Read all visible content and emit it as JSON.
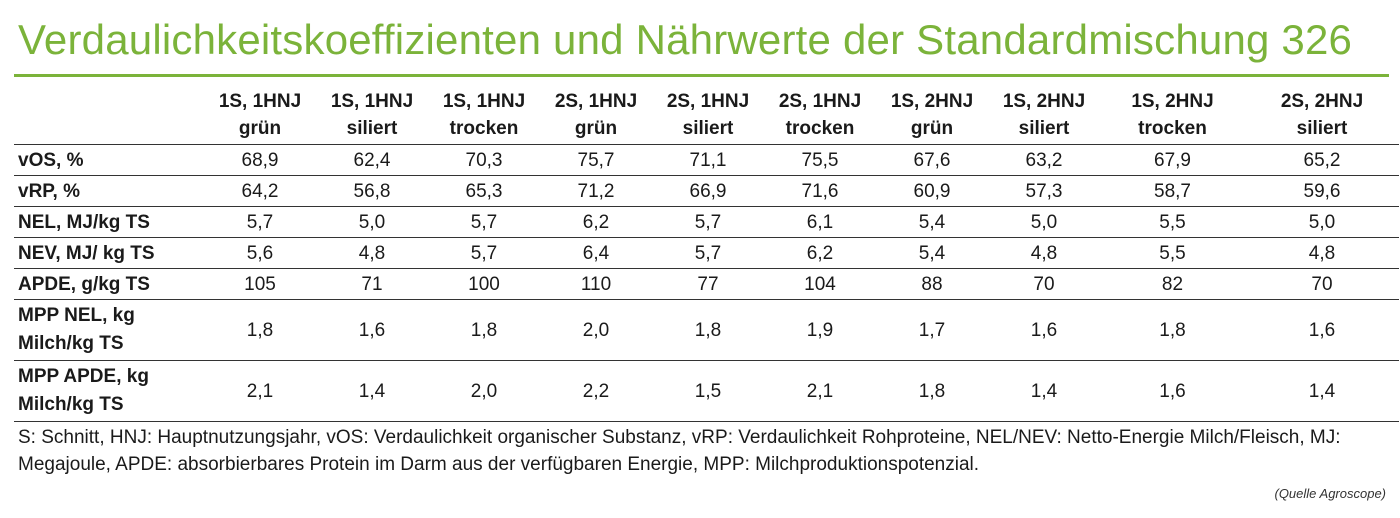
{
  "title": "Verdaulichkeitskoeffizienten und Nährwerte der Standardmischung 326",
  "colors": {
    "accent": "#7bb33a",
    "text": "#1a1a1a",
    "rule": "#333333"
  },
  "table": {
    "columns": [
      {
        "line1": "1S, 1HNJ",
        "line2": "grün"
      },
      {
        "line1": "1S, 1HNJ",
        "line2": "siliert"
      },
      {
        "line1": "1S, 1HNJ",
        "line2": "trocken"
      },
      {
        "line1": "2S, 1HNJ",
        "line2": "grün"
      },
      {
        "line1": "2S, 1HNJ",
        "line2": "siliert"
      },
      {
        "line1": "2S, 1HNJ",
        "line2": "trocken"
      },
      {
        "line1": "1S, 2HNJ",
        "line2": "grün"
      },
      {
        "line1": "1S, 2HNJ",
        "line2": "siliert"
      },
      {
        "line1": "1S, 2HNJ",
        "line2": "trocken"
      },
      {
        "line1": "2S, 2HNJ",
        "line2": "siliert"
      }
    ],
    "rows": [
      {
        "label": [
          "vOS, %"
        ],
        "values": [
          "68,9",
          "62,4",
          "70,3",
          "75,7",
          "71,1",
          "75,5",
          "67,6",
          "63,2",
          "67,9",
          "65,2"
        ]
      },
      {
        "label": [
          "vRP, %"
        ],
        "values": [
          "64,2",
          "56,8",
          "65,3",
          "71,2",
          "66,9",
          "71,6",
          "60,9",
          "57,3",
          "58,7",
          "59,6"
        ]
      },
      {
        "label": [
          "NEL, MJ/kg TS"
        ],
        "values": [
          "5,7",
          "5,0",
          "5,7",
          "6,2",
          "5,7",
          "6,1",
          "5,4",
          "5,0",
          "5,5",
          "5,0"
        ]
      },
      {
        "label": [
          "NEV, MJ/ kg TS"
        ],
        "values": [
          "5,6",
          "4,8",
          "5,7",
          "6,4",
          "5,7",
          "6,2",
          "5,4",
          "4,8",
          "5,5",
          "4,8"
        ]
      },
      {
        "label": [
          "APDE, g/kg TS"
        ],
        "values": [
          "105",
          "71",
          "100",
          "110",
          "77",
          "104",
          "88",
          "70",
          "82",
          "70"
        ]
      },
      {
        "label": [
          "MPP NEL, kg",
          "Milch/kg TS"
        ],
        "values": [
          "1,8",
          "1,6",
          "1,8",
          "2,0",
          "1,8",
          "1,9",
          "1,7",
          "1,6",
          "1,8",
          "1,6"
        ]
      },
      {
        "label": [
          "MPP APDE, kg",
          "Milch/kg TS"
        ],
        "values": [
          "2,1",
          "1,4",
          "2,0",
          "2,2",
          "1,5",
          "2,1",
          "1,8",
          "1,4",
          "1,6",
          "1,4"
        ]
      }
    ]
  },
  "footnote": "S: Schnitt, HNJ: Hauptnutzungsjahr, vOS: Verdaulichkeit organischer Substanz, vRP: Verdaulichkeit Rohproteine, NEL/NEV: Netto-Energie Milch/Fleisch, MJ: Megajoule, APDE: absorbierbares Protein im Darm aus der verfügbaren Energie, MPP: Milchproduktionspotenzial.",
  "source": "(Quelle Agroscope)"
}
